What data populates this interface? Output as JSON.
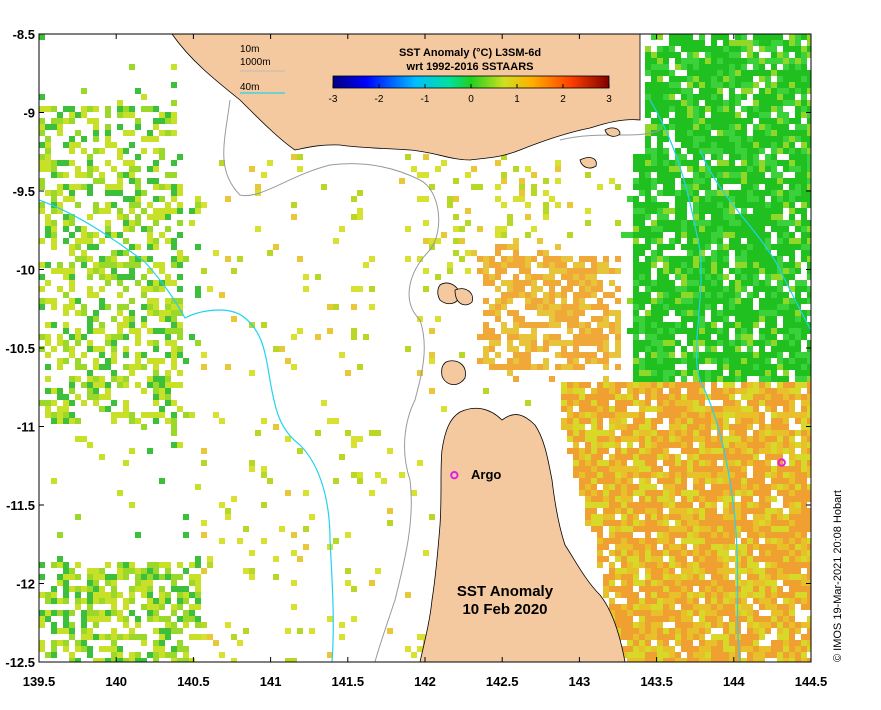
{
  "map": {
    "lon_range": [
      139.5,
      144.5
    ],
    "lat_range": [
      -8.5,
      -12.5
    ],
    "x_ticks": [
      "139.5",
      "140",
      "140.5",
      "141",
      "141.5",
      "142",
      "142.5",
      "143",
      "143.5",
      "144",
      "144.5"
    ],
    "y_ticks": [
      "-8.5",
      "-9",
      "-9.5",
      "-10",
      "-10.5",
      "-11",
      "-11.5",
      "-12",
      "-12.5"
    ],
    "land_color": "#f5c9a0",
    "ocean_color": "#ffffff",
    "isobath_colors": {
      "10m": "#999999",
      "1000m": "#bbbbbb",
      "40m": "#22d3ee"
    }
  },
  "colorbar": {
    "title_line1": "SST Anomaly (°C) L3SM-6d",
    "title_line2": "wrt 1992-2016 SSTAARS",
    "tick_labels": [
      "-3",
      "-2",
      "-1",
      "0",
      "1",
      "2",
      "3"
    ],
    "range": [
      -3,
      3
    ],
    "colormap": "jet"
  },
  "depth_legend": {
    "labels": [
      "10m",
      "1000m",
      "40m"
    ]
  },
  "title": {
    "line1": "SST Anomaly",
    "line2": "10 Feb 2020"
  },
  "argo": {
    "label": "Argo",
    "marker_color": "#e020e0",
    "floats": [
      {
        "lon": 142.19,
        "lat": -11.31
      },
      {
        "lon": 144.31,
        "lat": -11.23
      }
    ]
  },
  "credit": "© IMOS 19-Mar-2021 20:08 Hobart"
}
